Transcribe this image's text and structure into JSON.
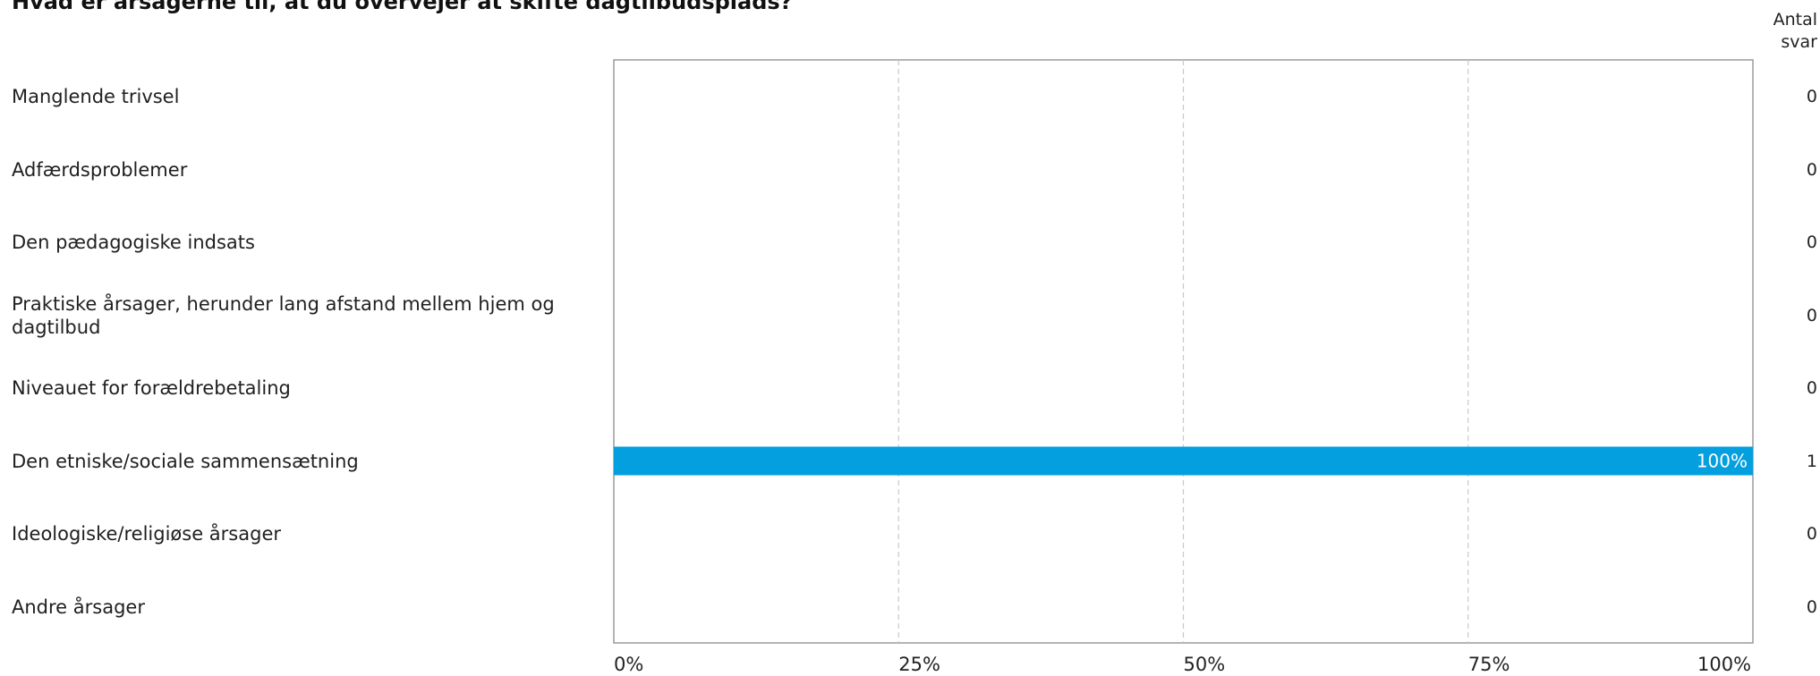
{
  "title": "Hvad er årsagerne til, at du overvejer at skifte dagtilbudsplads?",
  "count_header": {
    "line1": "Antal",
    "line2": "svar"
  },
  "colors": {
    "bar": "#049fdf",
    "grid": "#c8c8c8",
    "frame": "#9a9a9a",
    "bar_label": "#ffffff"
  },
  "chart_data": {
    "type": "bar",
    "orientation": "horizontal",
    "title": "Hvad er årsagerne til, at du overvejer at skifte dagtilbudsplads?",
    "categories": [
      "Manglende trivsel",
      "Adfærdsproblemer",
      "Den pædagogiske indsats",
      "Praktiske årsager, herunder lang afstand mellem hjem og dagtilbud",
      "Niveauet for forældrebetaling",
      "Den etniske/sociale sammensætning",
      "Ideologiske/religiøse årsager",
      "Andre årsager"
    ],
    "values": [
      0,
      0,
      0,
      0,
      0,
      100,
      0,
      0
    ],
    "value_labels": [
      "",
      "",
      "",
      "",
      "",
      "100%",
      "",
      ""
    ],
    "counts": [
      "0",
      "0",
      "0",
      "0",
      "0",
      "1",
      "0",
      "0"
    ],
    "xlim": [
      0,
      100
    ],
    "x_ticks": [
      "0%",
      "25%",
      "50%",
      "75%",
      "100%"
    ],
    "grid": "vertical dashed"
  }
}
